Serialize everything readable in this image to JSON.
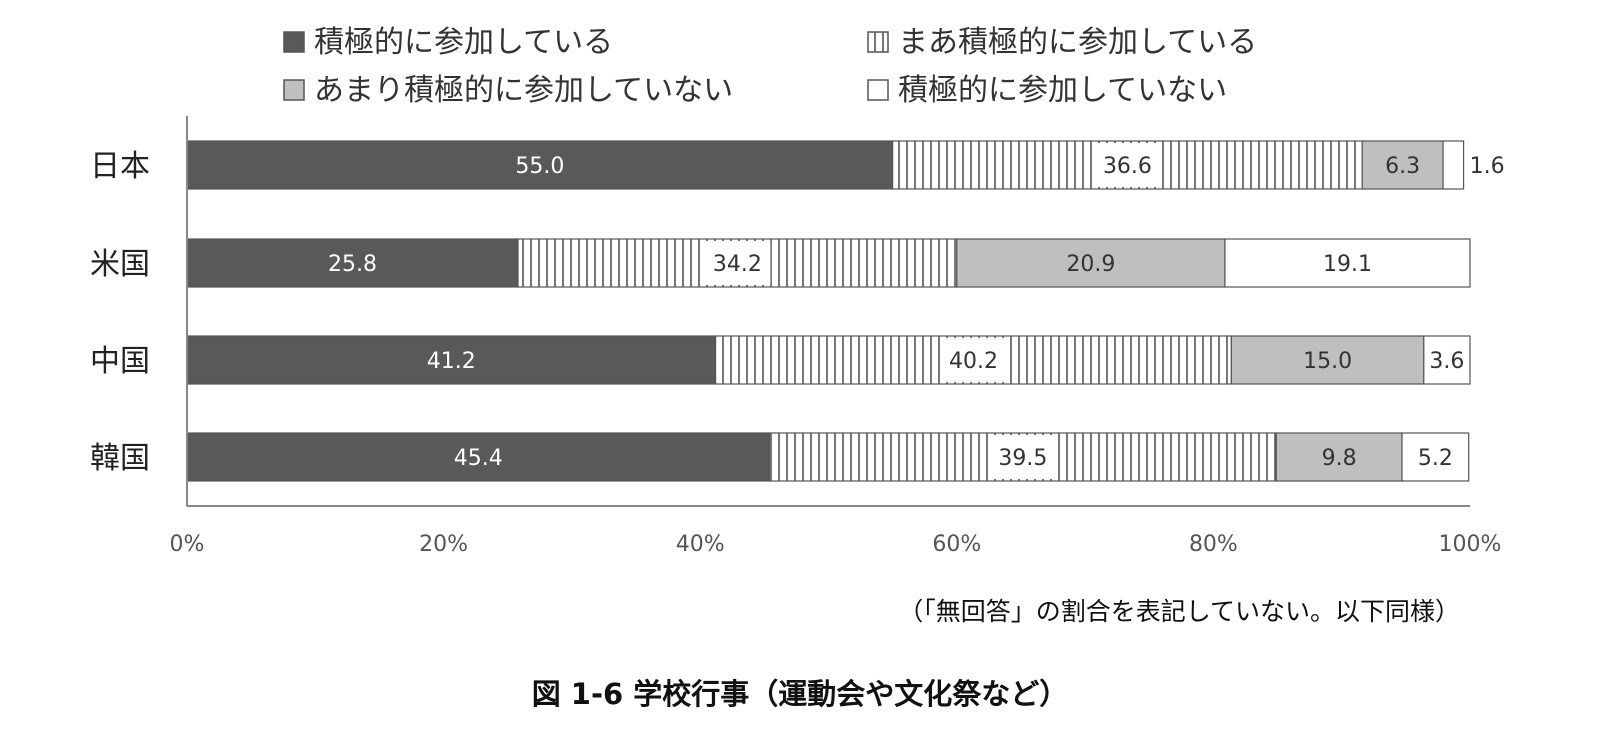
{
  "chart_data": {
    "type": "bar",
    "orientation": "horizontal",
    "stacked": true,
    "categories": [
      "日本",
      "米国",
      "中国",
      "韓国"
    ],
    "series": [
      {
        "name": "積極的に参加している",
        "values": [
          55.0,
          25.8,
          41.2,
          45.4
        ],
        "color": "#595959",
        "pattern": "solid",
        "label_color": "#ffffff"
      },
      {
        "name": "まあ積極的に参加している",
        "values": [
          36.6,
          34.2,
          40.2,
          39.5
        ],
        "color": "#ffffff",
        "pattern": "vertical-stripes",
        "label_color": "#333333"
      },
      {
        "name": "あまり積極的に参加していない",
        "values": [
          6.3,
          20.9,
          15.0,
          9.8
        ],
        "color": "#bfbfbf",
        "pattern": "solid",
        "label_color": "#333333"
      },
      {
        "name": "積極的に参加していない",
        "values": [
          1.6,
          19.1,
          3.6,
          5.2
        ],
        "color": "#ffffff",
        "pattern": "solid",
        "label_color": "#333333"
      }
    ],
    "xlim": [
      0,
      100
    ],
    "x_ticks": [
      "0%",
      "20%",
      "40%",
      "60%",
      "80%",
      "100%"
    ],
    "grid": false,
    "legend_position": "top",
    "note": "（「無回答」の割合を表記していない。以下同様）",
    "caption": "図 1-6 学校行事（運動会や文化祭など）"
  }
}
